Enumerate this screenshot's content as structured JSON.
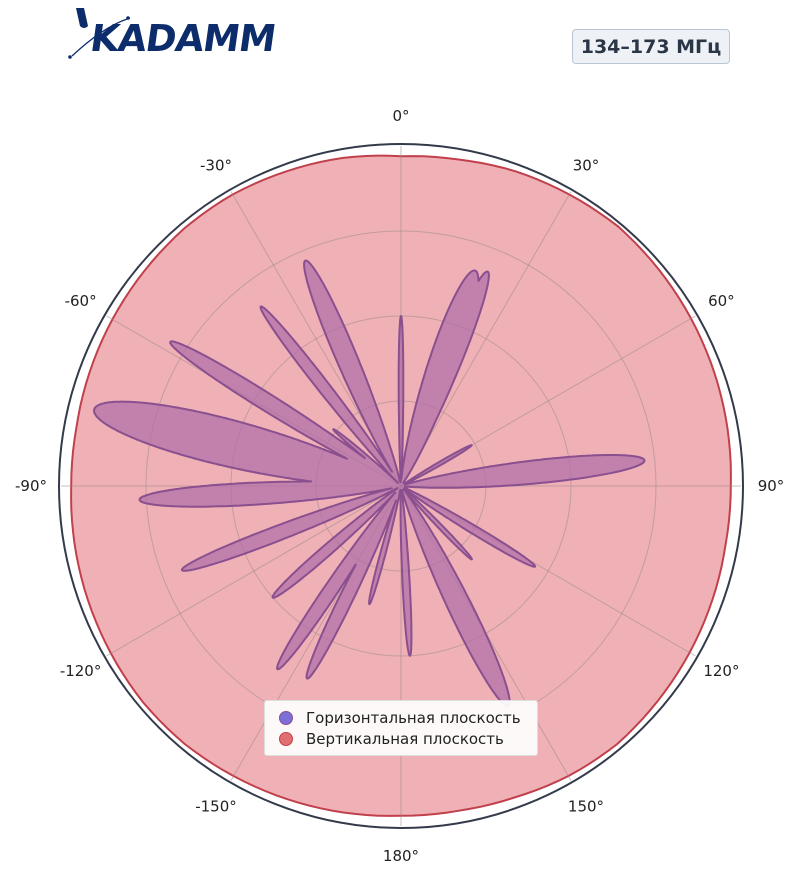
{
  "header": {
    "logo_text": "KADAMM",
    "frequency_badge": "134–173 МГц",
    "brand_color": "#0c2c6b"
  },
  "chart_data": {
    "type": "polar",
    "theta_ticks": [
      "0°",
      "30°",
      "60°",
      "90°",
      "120°",
      "150°",
      "180°",
      "-150°",
      "-120°",
      "-90°",
      "-60°",
      "-30°"
    ],
    "theta_tick_angles": [
      0,
      30,
      60,
      90,
      120,
      150,
      180,
      -150,
      -120,
      -90,
      -60,
      -30
    ],
    "r_range": [
      0,
      1
    ],
    "r_grid": [
      0.25,
      0.5,
      0.75,
      1.0
    ],
    "grid": true,
    "legend_position": "bottom-center",
    "series": [
      {
        "name": "Горизонтальная плоскость",
        "color": "#7c6fd8",
        "fill_color": "#b06ea8",
        "line_color": "#8a4f8e",
        "lobes": [
          {
            "angle": -58,
            "width": 3,
            "r": 0.8
          },
          {
            "angle": -76,
            "width": 7,
            "r": 0.93
          },
          {
            "angle": -93,
            "width": 4,
            "r": 0.77
          },
          {
            "angle": -111,
            "width": 3,
            "r": 0.69
          },
          {
            "angle": -131,
            "width": 3,
            "r": 0.5
          },
          {
            "angle": -146,
            "width": 3,
            "r": 0.65
          },
          {
            "angle": -154,
            "width": 3,
            "r": 0.63
          },
          {
            "angle": -165,
            "width": 2,
            "r": 0.36
          },
          {
            "angle": 177,
            "width": 2,
            "r": 0.5
          },
          {
            "angle": 154,
            "width": 4.5,
            "r": 0.72
          },
          {
            "angle": 136,
            "width": 2,
            "r": 0.3
          },
          {
            "angle": 121,
            "width": 2.5,
            "r": 0.46
          },
          {
            "angle": 84,
            "width": 4.5,
            "r": 0.72
          },
          {
            "angle": 60,
            "width": 2,
            "r": 0.24
          },
          {
            "angle": 19,
            "width": 6,
            "r": 0.67
          },
          {
            "angle": 22,
            "width": 4,
            "r": 0.68
          },
          {
            "angle": 0,
            "width": 1.3,
            "r": 0.5
          },
          {
            "angle": -23,
            "width": 4,
            "r": 0.72
          },
          {
            "angle": -38,
            "width": 2.5,
            "r": 0.67
          },
          {
            "angle": -50,
            "width": 2,
            "r": 0.26
          }
        ]
      },
      {
        "name": "Вертикальная плоскость",
        "color": "#e06f72",
        "fill_color": "#f0b1b6",
        "line_color": "#c0404c",
        "r_values": [
          0.97,
          0.975,
          0.985,
          0.99,
          0.995,
          0.99,
          0.985,
          0.98,
          0.975,
          0.97,
          0.97,
          0.975,
          0.98,
          0.985,
          0.99,
          0.985,
          0.975,
          0.97,
          0.97,
          0.975,
          0.98,
          0.985,
          0.99,
          0.99,
          0.985,
          0.98,
          0.975,
          0.97,
          0.97,
          0.975,
          0.98,
          0.985,
          0.99,
          0.99,
          0.985,
          0.98
        ]
      }
    ]
  },
  "legend": {
    "h_label": "Горизонтальная плоскость",
    "v_label": "Вертикальная плоскость"
  }
}
